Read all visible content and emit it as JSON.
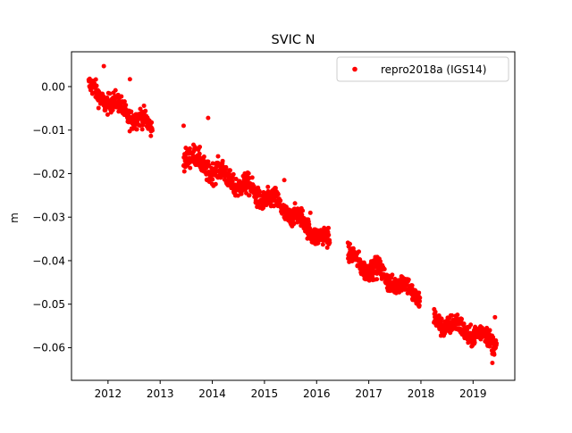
{
  "chart_data": {
    "type": "scatter",
    "title": "SVIC N",
    "xlabel": "",
    "ylabel": "m",
    "xlim": [
      2011.3,
      2019.8
    ],
    "ylim": [
      -0.0675,
      0.008
    ],
    "x_ticks": [
      2012,
      2013,
      2014,
      2015,
      2016,
      2017,
      2018,
      2019
    ],
    "x_tick_labels": [
      "2012",
      "2013",
      "2014",
      "2015",
      "2016",
      "2017",
      "2018",
      "2019"
    ],
    "y_ticks": [
      0.0,
      -0.01,
      -0.02,
      -0.03,
      -0.04,
      -0.05,
      -0.06
    ],
    "y_tick_labels": [
      "0.00",
      "−0.01",
      "−0.02",
      "−0.03",
      "−0.04",
      "−0.05",
      "−0.06"
    ],
    "grid": false,
    "legend": {
      "placement": "top-right",
      "entries": [
        "repro2018a (IGS14)"
      ]
    },
    "series": [
      {
        "name": "repro2018a (IGS14)",
        "color": "#ff0000",
        "marker": "circle",
        "segments": [
          {
            "x_start": 2011.63,
            "x_end": 2012.85,
            "y_start": -0.0005,
            "y_end": -0.0095,
            "scatter": 0.0011,
            "count": 260
          },
          {
            "x_start": 2013.45,
            "x_end": 2015.2,
            "y_start": -0.0155,
            "y_end": -0.027,
            "scatter": 0.0012,
            "count": 380
          },
          {
            "x_start": 2015.2,
            "x_end": 2016.25,
            "y_start": -0.0265,
            "y_end": -0.036,
            "scatter": 0.0011,
            "count": 230
          },
          {
            "x_start": 2016.6,
            "x_end": 2017.98,
            "y_start": -0.039,
            "y_end": -0.048,
            "scatter": 0.0011,
            "count": 290
          },
          {
            "x_start": 2018.25,
            "x_end": 2019.45,
            "y_start": -0.0535,
            "y_end": -0.0585,
            "scatter": 0.0011,
            "count": 270
          }
        ],
        "outliers": [
          {
            "x": 2011.92,
            "y": 0.0047
          },
          {
            "x": 2012.42,
            "y": 0.0017
          },
          {
            "x": 2013.45,
            "y": -0.009
          },
          {
            "x": 2013.92,
            "y": -0.0072
          },
          {
            "x": 2015.38,
            "y": -0.0215
          },
          {
            "x": 2015.88,
            "y": -0.029
          },
          {
            "x": 2019.37,
            "y": -0.0635
          },
          {
            "x": 2019.42,
            "y": -0.053
          }
        ]
      }
    ]
  }
}
